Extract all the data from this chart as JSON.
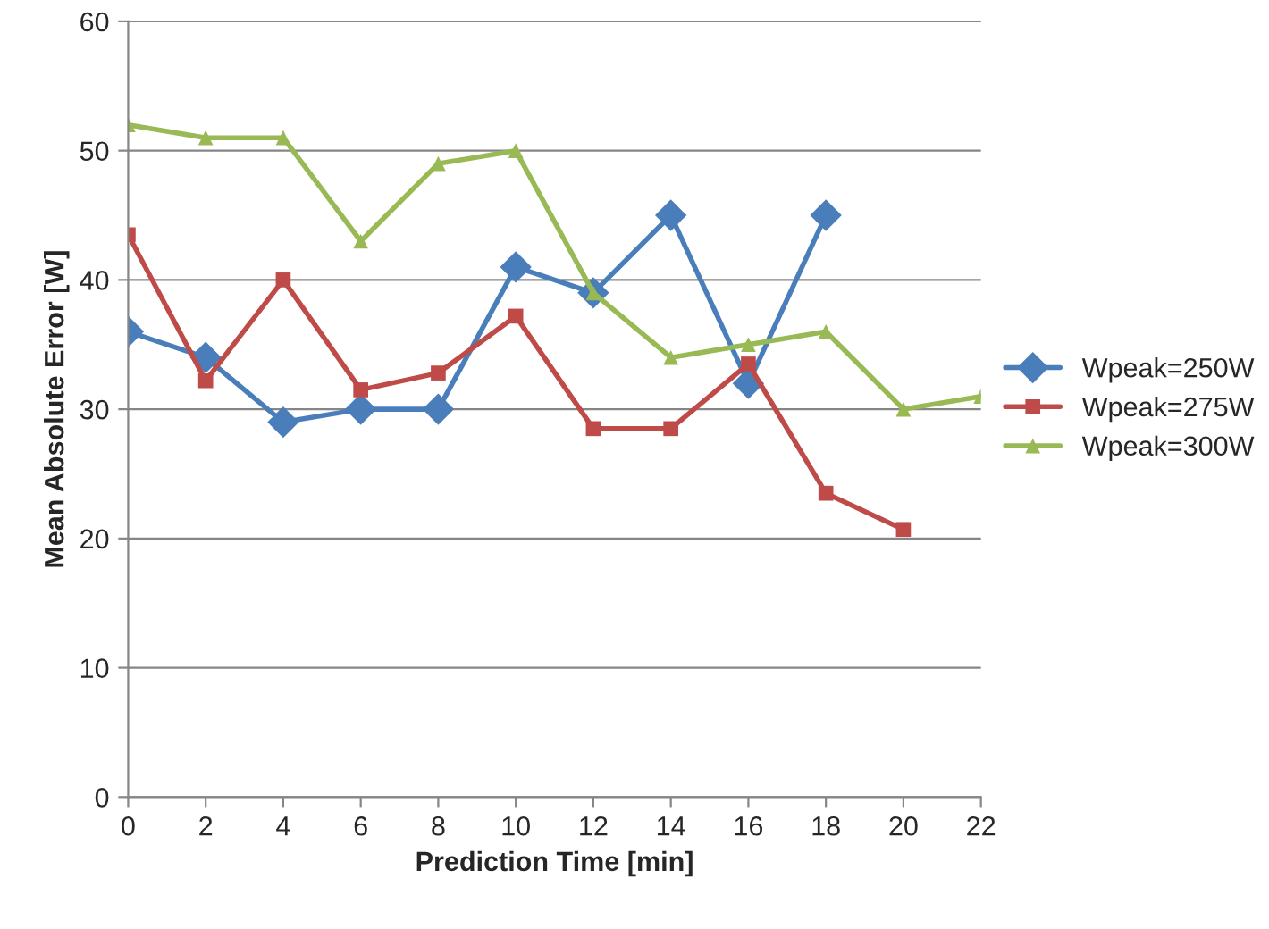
{
  "chart_data": {
    "type": "line",
    "xlabel": "Prediction Time [min]",
    "ylabel": "Mean Absolute Error [W]",
    "xlim": [
      0,
      22
    ],
    "xticks": [
      0,
      2,
      4,
      6,
      8,
      10,
      12,
      14,
      16,
      18,
      20,
      22
    ],
    "ylim": [
      0,
      60
    ],
    "yticks": [
      0,
      10,
      20,
      30,
      40,
      50,
      60
    ],
    "grid": "y",
    "legend": "right",
    "series": [
      {
        "name": "Wpeak=250W",
        "color": "#4a7ebb",
        "marker": "diamond",
        "x": [
          0,
          2,
          4,
          6,
          8,
          10,
          12,
          14,
          16,
          18
        ],
        "values": [
          36,
          34,
          29,
          30,
          30,
          41,
          39,
          45,
          32,
          45
        ]
      },
      {
        "name": "Wpeak=275W",
        "color": "#be4b48",
        "marker": "square",
        "x": [
          0,
          2,
          4,
          6,
          8,
          10,
          12,
          14,
          16,
          18,
          20
        ],
        "values": [
          43.5,
          32.2,
          40,
          31.5,
          32.8,
          37.2,
          28.5,
          28.5,
          33.5,
          23.5,
          20.7
        ]
      },
      {
        "name": "Wpeak=300W",
        "color": "#98b954",
        "marker": "triangle",
        "x": [
          0,
          2,
          4,
          6,
          8,
          10,
          12,
          14,
          16,
          18,
          20,
          22
        ],
        "values": [
          52,
          51,
          51,
          43,
          49,
          50,
          39,
          34,
          35,
          36,
          30,
          31
        ]
      }
    ]
  }
}
